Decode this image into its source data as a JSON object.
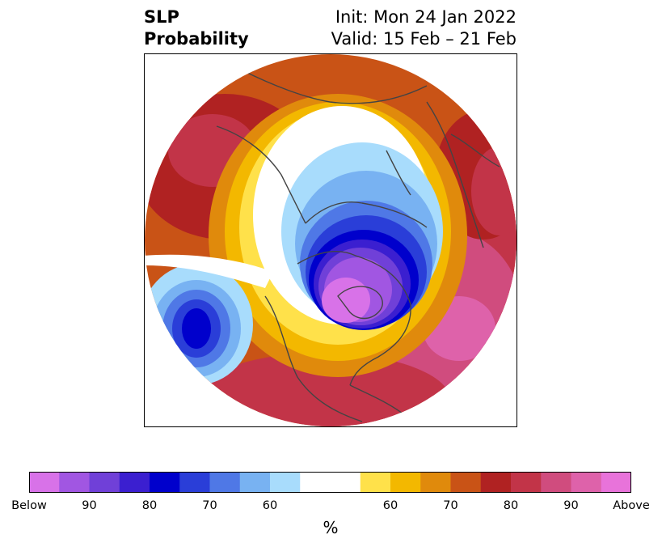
{
  "title": {
    "line1": "SLP",
    "line2": "Probability",
    "init": "Init: Mon 24 Jan 2022",
    "valid": "Valid: 15 Feb – 21 Feb"
  },
  "colorbar": {
    "unit": "%",
    "colors": [
      "#d872e8",
      "#a156e2",
      "#7040d8",
      "#3b1fd0",
      "#0000cc",
      "#2a3ed8",
      "#4f78e6",
      "#78b2f2",
      "#a8dcfc",
      "#ffffff",
      "#ffffff",
      "#ffe14a",
      "#f3b800",
      "#e08a0c",
      "#c95316",
      "#b02222",
      "#c23448",
      "#d04c7e",
      "#de62aa",
      "#e873da"
    ],
    "ticks": [
      "Below",
      "90",
      "80",
      "70",
      "60",
      "60",
      "70",
      "80",
      "90",
      "Above"
    ]
  },
  "map": {
    "description_colors": {
      "below_strong": "#d872e8",
      "below_blue": "#0000cc",
      "neutral": "#ffffff",
      "above_yellow": "#ffe14a",
      "above_red": "#b02222",
      "above_pink": "#de62aa"
    }
  }
}
